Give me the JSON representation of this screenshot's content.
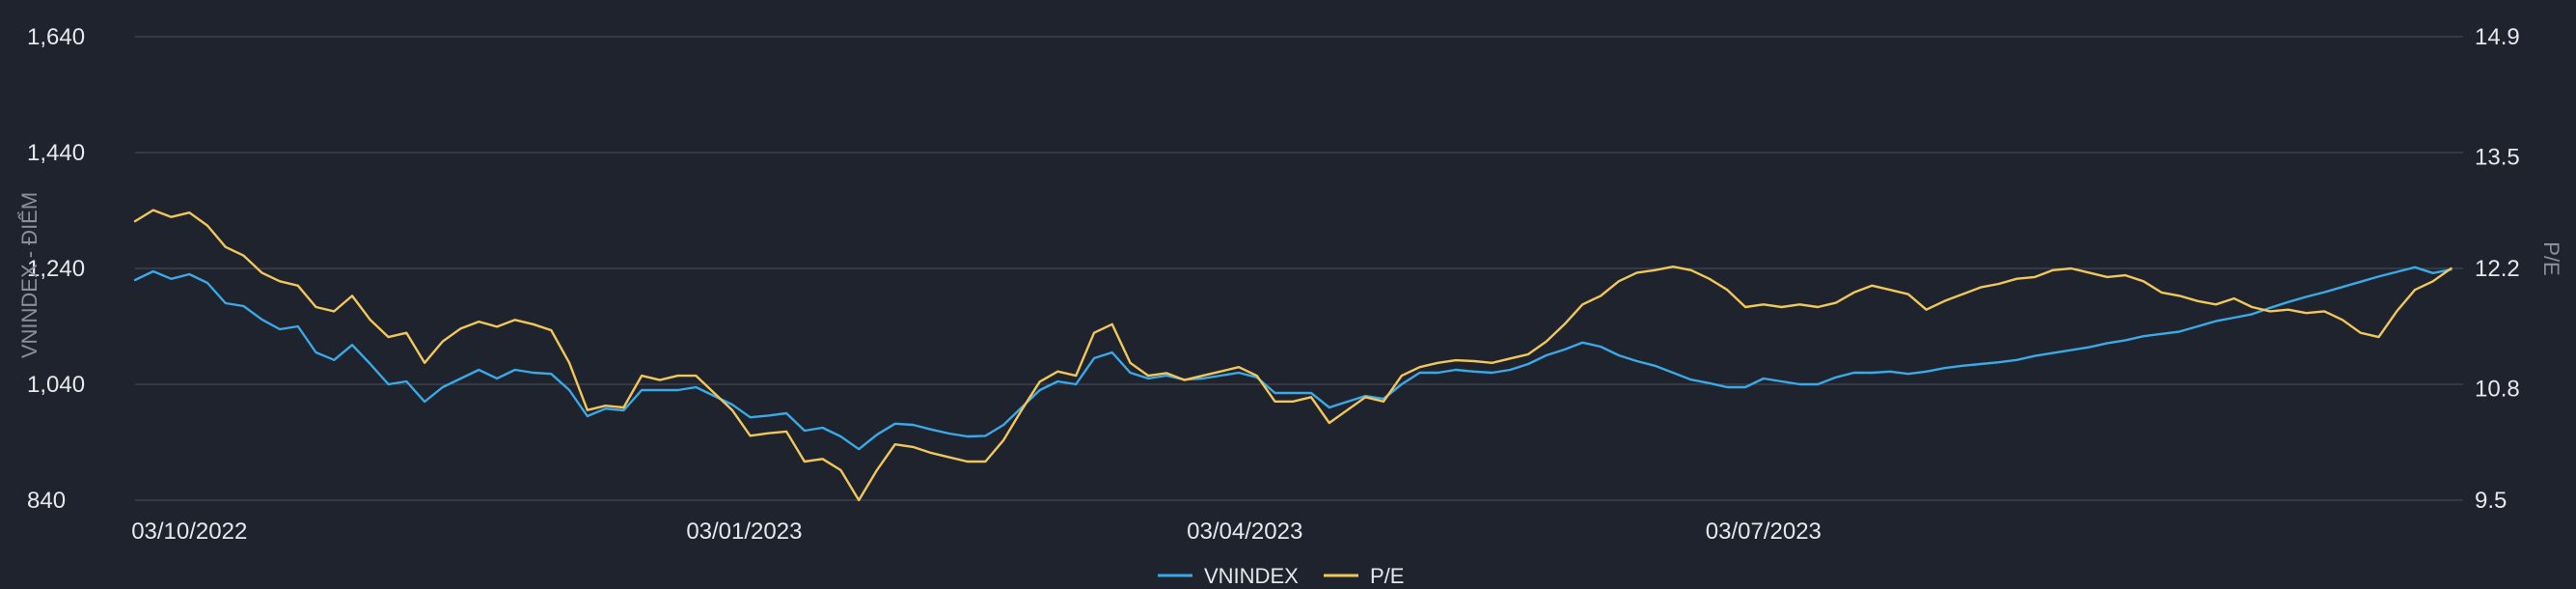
{
  "chart_data": {
    "type": "line",
    "title": "",
    "xlabel": "",
    "ylabel": "VNINDEX - ĐIỂM",
    "y2label": "P/E",
    "grid": true,
    "legend_position": "bottom-center",
    "x_range": [
      0,
      386
    ],
    "x_ticks": [
      {
        "x": 9,
        "label": "03/10/2022"
      },
      {
        "x": 101,
        "label": "03/01/2023"
      },
      {
        "x": 184,
        "label": "03/04/2023"
      },
      {
        "x": 270,
        "label": "03/07/2023"
      }
    ],
    "y_left": {
      "min": 840,
      "max": 1640,
      "ticks": [
        "1,640",
        "1,440",
        "1,240",
        "1,040",
        "840"
      ],
      "tick_values": [
        1640,
        1440,
        1240,
        1040,
        840
      ]
    },
    "y_right": {
      "min": 9.5,
      "max": 14.9,
      "ticks": [
        "14.9",
        "13.5",
        "12.2",
        "10.8",
        "9.5"
      ],
      "tick_values": [
        14.9,
        13.5,
        12.2,
        10.8,
        9.5
      ]
    },
    "series": [
      {
        "name": "VNINDEX",
        "axis": "left",
        "color": "#3aa9e6",
        "points": [
          [
            0,
            1220
          ],
          [
            3,
            1235
          ],
          [
            6,
            1222
          ],
          [
            9,
            1230
          ],
          [
            12,
            1215
          ],
          [
            15,
            1180
          ],
          [
            18,
            1175
          ],
          [
            21,
            1152
          ],
          [
            24,
            1135
          ],
          [
            27,
            1140
          ],
          [
            30,
            1095
          ],
          [
            33,
            1082
          ],
          [
            36,
            1108
          ],
          [
            39,
            1075
          ],
          [
            42,
            1040
          ],
          [
            45,
            1045
          ],
          [
            48,
            1010
          ],
          [
            51,
            1035
          ],
          [
            54,
            1050
          ],
          [
            57,
            1065
          ],
          [
            60,
            1050
          ],
          [
            63,
            1065
          ],
          [
            66,
            1060
          ],
          [
            69,
            1058
          ],
          [
            72,
            1030
          ],
          [
            75,
            985
          ],
          [
            78,
            998
          ],
          [
            81,
            995
          ],
          [
            84,
            1030
          ],
          [
            87,
            1030
          ],
          [
            90,
            1030
          ],
          [
            93,
            1035
          ],
          [
            96,
            1020
          ],
          [
            99,
            1005
          ],
          [
            102,
            983
          ],
          [
            105,
            986
          ],
          [
            108,
            990
          ],
          [
            111,
            960
          ],
          [
            114,
            965
          ],
          [
            117,
            950
          ],
          [
            120,
            928
          ],
          [
            123,
            953
          ],
          [
            126,
            972
          ],
          [
            129,
            970
          ],
          [
            132,
            962
          ],
          [
            135,
            955
          ],
          [
            138,
            950
          ],
          [
            141,
            951
          ],
          [
            144,
            970
          ],
          [
            147,
            1000
          ],
          [
            150,
            1030
          ],
          [
            153,
            1045
          ],
          [
            156,
            1040
          ],
          [
            159,
            1085
          ],
          [
            162,
            1095
          ],
          [
            165,
            1060
          ],
          [
            168,
            1050
          ],
          [
            171,
            1055
          ],
          [
            174,
            1048
          ],
          [
            177,
            1050
          ],
          [
            180,
            1055
          ],
          [
            183,
            1060
          ],
          [
            186,
            1052
          ],
          [
            189,
            1025
          ],
          [
            192,
            1025
          ],
          [
            195,
            1025
          ],
          [
            198,
            1000
          ],
          [
            201,
            1010
          ],
          [
            204,
            1020
          ],
          [
            207,
            1015
          ],
          [
            210,
            1040
          ],
          [
            213,
            1060
          ],
          [
            216,
            1060
          ],
          [
            219,
            1065
          ],
          [
            222,
            1062
          ],
          [
            225,
            1060
          ],
          [
            228,
            1065
          ],
          [
            231,
            1075
          ],
          [
            234,
            1090
          ],
          [
            237,
            1100
          ],
          [
            240,
            1112
          ],
          [
            243,
            1105
          ],
          [
            246,
            1090
          ],
          [
            249,
            1080
          ],
          [
            252,
            1072
          ],
          [
            255,
            1060
          ],
          [
            258,
            1048
          ],
          [
            261,
            1042
          ],
          [
            264,
            1035
          ],
          [
            267,
            1035
          ],
          [
            270,
            1050
          ],
          [
            273,
            1045
          ],
          [
            276,
            1040
          ],
          [
            279,
            1040
          ],
          [
            282,
            1052
          ],
          [
            285,
            1060
          ],
          [
            288,
            1060
          ],
          [
            291,
            1062
          ],
          [
            294,
            1058
          ],
          [
            297,
            1062
          ],
          [
            300,
            1068
          ],
          [
            303,
            1072
          ],
          [
            306,
            1075
          ],
          [
            309,
            1078
          ],
          [
            312,
            1082
          ],
          [
            315,
            1089
          ],
          [
            318,
            1094
          ],
          [
            321,
            1099
          ],
          [
            324,
            1104
          ],
          [
            327,
            1111
          ],
          [
            330,
            1116
          ],
          [
            333,
            1123
          ],
          [
            336,
            1127
          ],
          [
            339,
            1131
          ],
          [
            342,
            1140
          ],
          [
            345,
            1149
          ],
          [
            348,
            1155
          ],
          [
            351,
            1161
          ],
          [
            354,
            1172
          ],
          [
            357,
            1182
          ],
          [
            360,
            1191
          ],
          [
            363,
            1199
          ],
          [
            366,
            1208
          ],
          [
            369,
            1217
          ],
          [
            372,
            1226
          ],
          [
            375,
            1234
          ],
          [
            378,
            1242
          ],
          [
            381,
            1232
          ],
          [
            384,
            1238
          ]
        ]
      },
      {
        "name": "P/E",
        "axis": "right",
        "color": "#f0c75a",
        "points": [
          [
            0,
            12.75
          ],
          [
            3,
            12.88
          ],
          [
            6,
            12.8
          ],
          [
            9,
            12.85
          ],
          [
            12,
            12.7
          ],
          [
            15,
            12.45
          ],
          [
            18,
            12.35
          ],
          [
            21,
            12.15
          ],
          [
            24,
            12.05
          ],
          [
            27,
            12.0
          ],
          [
            30,
            11.75
          ],
          [
            33,
            11.7
          ],
          [
            36,
            11.88
          ],
          [
            39,
            11.6
          ],
          [
            42,
            11.4
          ],
          [
            45,
            11.45
          ],
          [
            48,
            11.1
          ],
          [
            51,
            11.35
          ],
          [
            54,
            11.5
          ],
          [
            57,
            11.58
          ],
          [
            60,
            11.52
          ],
          [
            63,
            11.6
          ],
          [
            66,
            11.55
          ],
          [
            69,
            11.48
          ],
          [
            72,
            11.1
          ],
          [
            75,
            10.55
          ],
          [
            78,
            10.6
          ],
          [
            81,
            10.58
          ],
          [
            84,
            10.95
          ],
          [
            87,
            10.9
          ],
          [
            90,
            10.95
          ],
          [
            93,
            10.95
          ],
          [
            96,
            10.75
          ],
          [
            99,
            10.55
          ],
          [
            102,
            10.25
          ],
          [
            105,
            10.28
          ],
          [
            108,
            10.3
          ],
          [
            111,
            9.95
          ],
          [
            114,
            9.98
          ],
          [
            117,
            9.85
          ],
          [
            120,
            9.5
          ],
          [
            123,
            9.85
          ],
          [
            126,
            10.15
          ],
          [
            129,
            10.12
          ],
          [
            132,
            10.05
          ],
          [
            135,
            10.0
          ],
          [
            138,
            9.95
          ],
          [
            141,
            9.95
          ],
          [
            144,
            10.2
          ],
          [
            147,
            10.55
          ],
          [
            150,
            10.88
          ],
          [
            153,
            11.0
          ],
          [
            156,
            10.95
          ],
          [
            159,
            11.45
          ],
          [
            162,
            11.55
          ],
          [
            165,
            11.1
          ],
          [
            168,
            10.95
          ],
          [
            171,
            10.98
          ],
          [
            174,
            10.9
          ],
          [
            177,
            10.95
          ],
          [
            180,
            11.0
          ],
          [
            183,
            11.05
          ],
          [
            186,
            10.95
          ],
          [
            189,
            10.65
          ],
          [
            192,
            10.65
          ],
          [
            195,
            10.7
          ],
          [
            198,
            10.4
          ],
          [
            201,
            10.55
          ],
          [
            204,
            10.7
          ],
          [
            207,
            10.65
          ],
          [
            210,
            10.95
          ],
          [
            213,
            11.05
          ],
          [
            216,
            11.1
          ],
          [
            219,
            11.13
          ],
          [
            222,
            11.12
          ],
          [
            225,
            11.1
          ],
          [
            228,
            11.15
          ],
          [
            231,
            11.2
          ],
          [
            234,
            11.35
          ],
          [
            237,
            11.55
          ],
          [
            240,
            11.78
          ],
          [
            243,
            11.88
          ],
          [
            246,
            12.05
          ],
          [
            249,
            12.15
          ],
          [
            252,
            12.18
          ],
          [
            255,
            12.22
          ],
          [
            258,
            12.18
          ],
          [
            261,
            12.08
          ],
          [
            264,
            11.95
          ],
          [
            267,
            11.75
          ],
          [
            270,
            11.78
          ],
          [
            273,
            11.75
          ],
          [
            276,
            11.78
          ],
          [
            279,
            11.75
          ],
          [
            282,
            11.8
          ],
          [
            285,
            11.92
          ],
          [
            288,
            12.0
          ],
          [
            291,
            11.95
          ],
          [
            294,
            11.9
          ],
          [
            297,
            11.72
          ],
          [
            300,
            11.82
          ],
          [
            303,
            11.9
          ],
          [
            306,
            11.98
          ],
          [
            309,
            12.02
          ],
          [
            312,
            12.08
          ],
          [
            315,
            12.1
          ],
          [
            318,
            12.18
          ],
          [
            321,
            12.2
          ],
          [
            324,
            12.15
          ],
          [
            327,
            12.1
          ],
          [
            330,
            12.12
          ],
          [
            333,
            12.05
          ],
          [
            336,
            11.92
          ],
          [
            339,
            11.88
          ],
          [
            342,
            11.82
          ],
          [
            345,
            11.78
          ],
          [
            348,
            11.85
          ],
          [
            351,
            11.75
          ],
          [
            354,
            11.7
          ],
          [
            357,
            11.72
          ],
          [
            360,
            11.68
          ],
          [
            363,
            11.7
          ],
          [
            366,
            11.6
          ],
          [
            369,
            11.45
          ],
          [
            372,
            11.4
          ],
          [
            375,
            11.7
          ],
          [
            378,
            11.95
          ],
          [
            381,
            12.05
          ],
          [
            384,
            12.2
          ]
        ]
      }
    ],
    "legend": [
      "VNINDEX",
      "P/E"
    ]
  }
}
